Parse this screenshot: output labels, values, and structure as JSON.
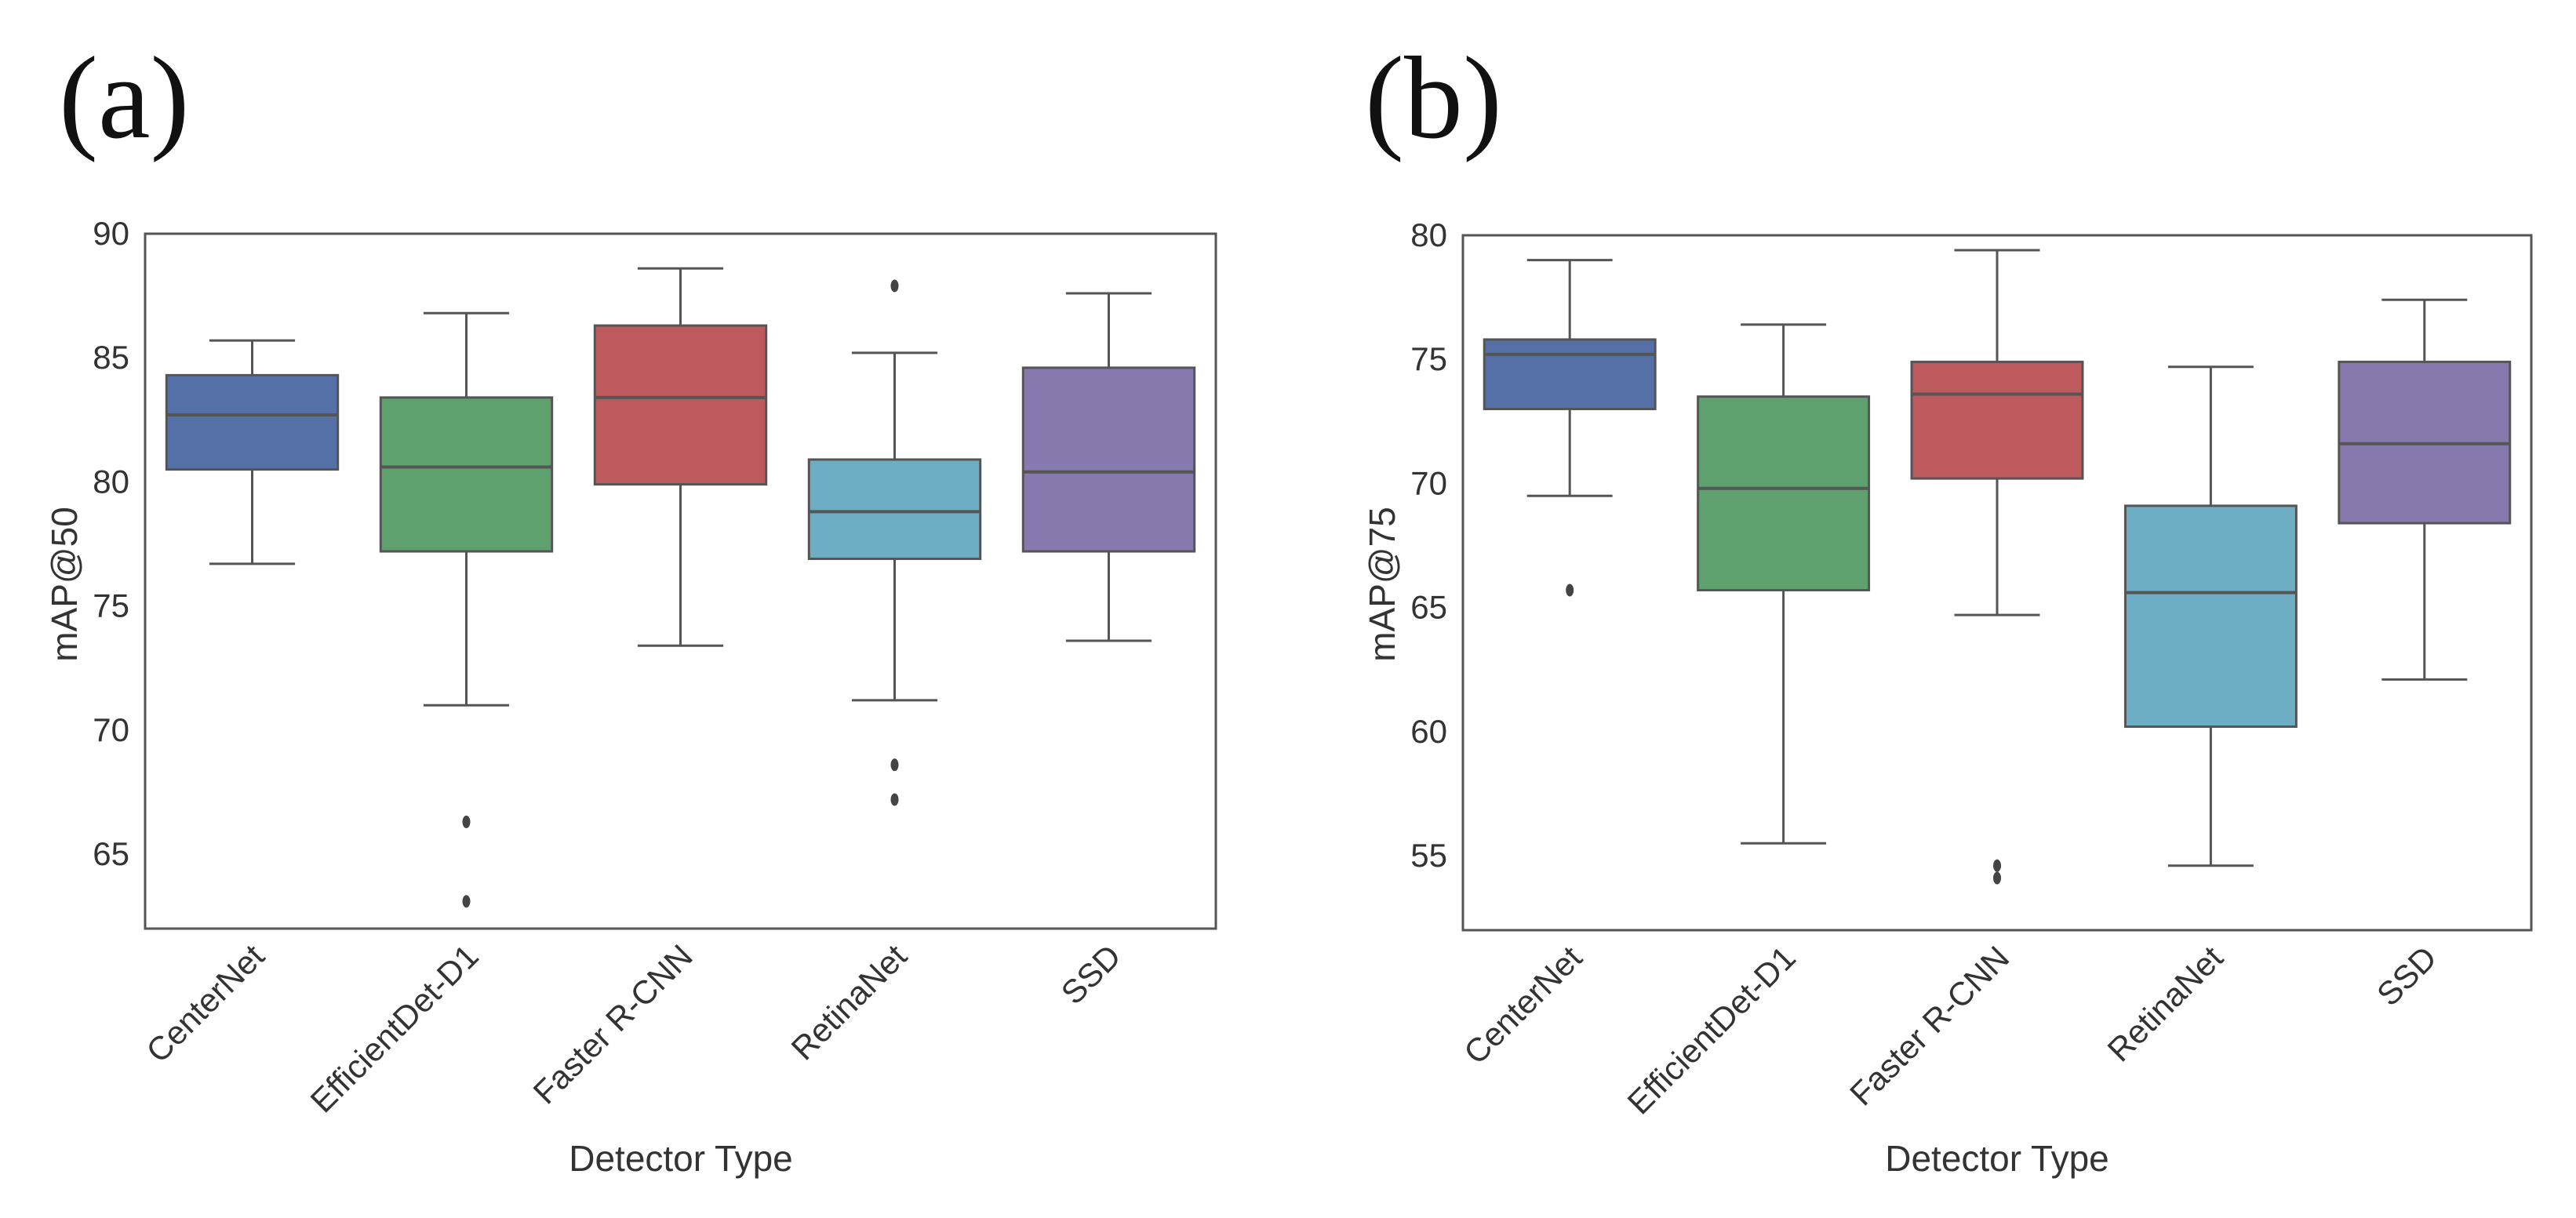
{
  "chart_data": [
    {
      "panel_label": "(a)",
      "type": "box",
      "title": "",
      "xlabel": "Detector Type",
      "ylabel": "mAP@50",
      "ylim": [
        62,
        90
      ],
      "yticks": [
        65,
        70,
        75,
        80,
        85,
        90
      ],
      "grid": false,
      "categories": [
        "CenterNet",
        "EfficientDet-D1",
        "Faster R-CNN",
        "RetinaNet",
        "SSD"
      ],
      "boxes": [
        {
          "name": "CenterNet",
          "color": "#5470a7",
          "whisker_low": 76.7,
          "q1": 80.5,
          "median": 82.7,
          "q3": 84.3,
          "whisker_high": 85.7,
          "outliers": []
        },
        {
          "name": "EfficientDet-D1",
          "color": "#5ea16f",
          "whisker_low": 71.0,
          "q1": 77.2,
          "median": 80.6,
          "q3": 83.4,
          "whisker_high": 86.8,
          "outliers": [
            66.3,
            63.1
          ]
        },
        {
          "name": "Faster R-CNN",
          "color": "#bd5a5d",
          "whisker_low": 73.4,
          "q1": 79.9,
          "median": 83.4,
          "q3": 86.3,
          "whisker_high": 88.6,
          "outliers": []
        },
        {
          "name": "RetinaNet",
          "color": "#6daec5",
          "whisker_low": 71.2,
          "q1": 76.9,
          "median": 78.8,
          "q3": 80.9,
          "whisker_high": 85.2,
          "outliers": [
            87.9,
            68.6,
            67.2
          ]
        },
        {
          "name": "SSD",
          "color": "#8779ae",
          "whisker_low": 73.6,
          "q1": 77.2,
          "median": 80.4,
          "q3": 84.6,
          "whisker_high": 87.6,
          "outliers": []
        }
      ]
    },
    {
      "panel_label": "(b)",
      "type": "box",
      "title": "",
      "xlabel": "Detector Type",
      "ylabel": "mAP@75",
      "ylim": [
        52,
        80
      ],
      "yticks": [
        55,
        60,
        65,
        70,
        75,
        80
      ],
      "grid": false,
      "categories": [
        "CenterNet",
        "EfficientDet-D1",
        "Faster R-CNN",
        "RetinaNet",
        "SSD"
      ],
      "boxes": [
        {
          "name": "CenterNet",
          "color": "#5470a7",
          "whisker_low": 69.5,
          "q1": 73.0,
          "median": 75.2,
          "q3": 75.8,
          "whisker_high": 79.0,
          "outliers": [
            65.7
          ]
        },
        {
          "name": "EfficientDet-D1",
          "color": "#5ea16f",
          "whisker_low": 55.5,
          "q1": 65.7,
          "median": 69.8,
          "q3": 73.5,
          "whisker_high": 76.4,
          "outliers": []
        },
        {
          "name": "Faster R-CNN",
          "color": "#bd5a5d",
          "whisker_low": 64.7,
          "q1": 70.2,
          "median": 73.6,
          "q3": 74.9,
          "whisker_high": 79.4,
          "outliers": [
            54.6,
            54.1
          ]
        },
        {
          "name": "RetinaNet",
          "color": "#6daec5",
          "whisker_low": 54.6,
          "q1": 60.2,
          "median": 65.6,
          "q3": 69.1,
          "whisker_high": 74.7,
          "outliers": []
        },
        {
          "name": "SSD",
          "color": "#8779ae",
          "whisker_low": 62.1,
          "q1": 68.4,
          "median": 71.6,
          "q3": 74.9,
          "whisker_high": 77.4,
          "outliers": []
        }
      ]
    }
  ]
}
